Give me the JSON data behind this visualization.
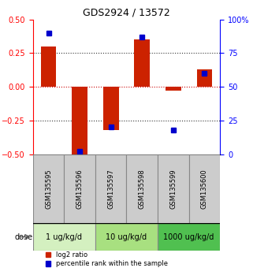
{
  "title": "GDS2924 / 13572",
  "samples": [
    "GSM135595",
    "GSM135596",
    "GSM135597",
    "GSM135598",
    "GSM135599",
    "GSM135600"
  ],
  "log2_ratio": [
    0.3,
    -0.5,
    -0.32,
    0.35,
    -0.03,
    0.13
  ],
  "percentile_rank": [
    90,
    2,
    20,
    87,
    18,
    60
  ],
  "doses": [
    {
      "label": "1 ug/kg/d",
      "samples": [
        0,
        1
      ],
      "color": "#d4f0c0"
    },
    {
      "label": "10 ug/kg/d",
      "samples": [
        2,
        3
      ],
      "color": "#a8e080"
    },
    {
      "label": "1000 ug/kg/d",
      "samples": [
        4,
        5
      ],
      "color": "#50c050"
    }
  ],
  "ylim_left": [
    -0.5,
    0.5
  ],
  "ylim_right": [
    0,
    100
  ],
  "left_ticks": [
    -0.5,
    -0.25,
    0,
    0.25,
    0.5
  ],
  "right_ticks": [
    0,
    25,
    50,
    75,
    100
  ],
  "bar_color_red": "#cc2200",
  "dot_color_blue": "#0000cc",
  "hline_color": "#cc0000",
  "dotline_color": "#333333",
  "grid_color": "#888888",
  "sample_box_color": "#cccccc",
  "legend_red": "log2 ratio",
  "legend_blue": "percentile rank within the sample"
}
